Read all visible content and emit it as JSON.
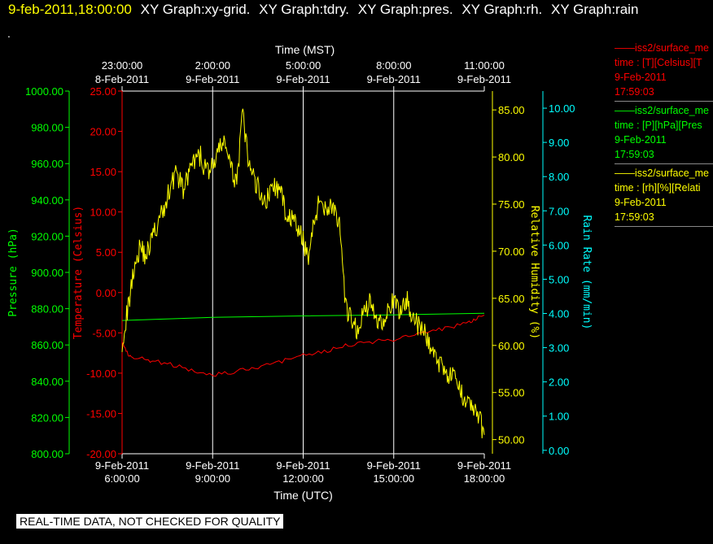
{
  "header": {
    "datetime": "9-feb-2011,18:00:00",
    "titles": [
      "XY Graph:xy-grid.",
      "XY Graph:tdry.",
      "XY Graph:pres.",
      "XY Graph:rh.",
      "XY Graph:rain"
    ]
  },
  "header_dot": ".",
  "banner": "REAL-TIME DATA, NOT CHECKED FOR QUALITY",
  "colors": {
    "temperature": "#ff0000",
    "pressure": "#00ff00",
    "humidity": "#ffff00",
    "rain": "#00ffff",
    "grid": "#ffffff"
  },
  "legend": [
    {
      "color": "#ff0000",
      "name": "iss2/surface_me",
      "line2": "time : [T][Celsius][T",
      "line3": "9-Feb-2011",
      "line4": "17:59:03"
    },
    {
      "color": "#00ff00",
      "name": "iss2/surface_me",
      "line2": "time : [P][hPa][Pres",
      "line3": "9-Feb-2011",
      "line4": "17:59:03"
    },
    {
      "color": "#ffff00",
      "name": "iss2/surface_me",
      "line2": "time : [rh][%][Relati",
      "line3": "9-Feb-2011",
      "line4": "17:59:03"
    }
  ],
  "chart_data": {
    "type": "line",
    "top_axis": {
      "label": "Time (MST)",
      "ticks": [
        {
          "time": "23:00:00",
          "date": "8-Feb-2011"
        },
        {
          "time": "2:00:00",
          "date": "9-Feb-2011"
        },
        {
          "time": "5:00:00",
          "date": "9-Feb-2011"
        },
        {
          "time": "8:00:00",
          "date": "9-Feb-2011"
        },
        {
          "time": "11:00:00",
          "date": "9-Feb-2011"
        }
      ]
    },
    "bottom_axis": {
      "label": "Time (UTC)",
      "xlim": [
        "2011-02-09 06:00:00",
        "2011-02-09 18:00:00"
      ],
      "ticks": [
        {
          "date": "9-Feb-2011",
          "time": "6:00:00"
        },
        {
          "date": "9-Feb-2011",
          "time": "9:00:00"
        },
        {
          "date": "9-Feb-2011",
          "time": "12:00:00"
        },
        {
          "date": "9-Feb-2011",
          "time": "15:00:00"
        },
        {
          "date": "9-Feb-2011",
          "time": "18:00:00"
        }
      ]
    },
    "grid": true,
    "legend_position": "right",
    "y_axes": {
      "pressure": {
        "label": "Pressure (hPa)",
        "ylim": [
          800,
          1000
        ],
        "ticks": [
          "800.00",
          "820.00",
          "840.00",
          "860.00",
          "880.00",
          "900.00",
          "920.00",
          "940.00",
          "960.00",
          "980.00",
          "1000.00"
        ]
      },
      "temperature": {
        "label": "Temperature (Celsius)",
        "ylim": [
          -20,
          25
        ],
        "ticks": [
          "-20.00",
          "-15.00",
          "-10.00",
          "-5.00",
          "0.00",
          "5.00",
          "10.00",
          "15.00",
          "20.00",
          "25.00"
        ]
      },
      "humidity": {
        "label": "Relative Humidity (%)",
        "ylim": [
          48.5,
          87
        ],
        "ticks": [
          "50.00",
          "55.00",
          "60.00",
          "65.00",
          "70.00",
          "75.00",
          "80.00",
          "85.00"
        ]
      },
      "rain": {
        "label": "Rain Rate (mm/min)",
        "ylim": [
          -0.1,
          10.5
        ],
        "ticks": [
          "0.00",
          "1.00",
          "2.00",
          "3.00",
          "4.00",
          "5.00",
          "6.00",
          "7.00",
          "8.00",
          "9.00",
          "10.00"
        ]
      }
    },
    "series": [
      {
        "name": "iss2/surface_me",
        "axis": "temperature",
        "x": [
          "06:00",
          "06:10",
          "06:20",
          "06:40",
          "07:00",
          "07:30",
          "08:00",
          "08:30",
          "09:00",
          "09:30",
          "10:00",
          "10:30",
          "11:00",
          "11:30",
          "12:00",
          "12:30",
          "13:00",
          "13:30",
          "14:00",
          "14:30",
          "15:00",
          "15:30",
          "16:00",
          "16:30",
          "17:00",
          "17:30",
          "17:45",
          "18:00"
        ],
        "y": [
          -6.0,
          -7.5,
          -8.0,
          -8.2,
          -8.5,
          -8.8,
          -9.3,
          -9.8,
          -10.2,
          -10.0,
          -9.6,
          -9.3,
          -8.8,
          -8.3,
          -7.8,
          -7.5,
          -7.0,
          -6.5,
          -6.3,
          -6.0,
          -5.8,
          -5.4,
          -5.0,
          -4.6,
          -4.2,
          -3.6,
          -3.1,
          -2.8
        ]
      },
      {
        "name": "iss2/surface_me",
        "axis": "pressure",
        "x": [
          "06:00",
          "09:00",
          "12:00",
          "15:00",
          "18:00"
        ],
        "y": [
          873.5,
          875.2,
          876.0,
          876.6,
          877.5
        ]
      },
      {
        "name": "iss2/surface_me",
        "axis": "humidity",
        "x": [
          "06:00",
          "06:12",
          "06:24",
          "06:36",
          "06:48",
          "07:00",
          "07:12",
          "07:24",
          "07:36",
          "07:48",
          "08:00",
          "08:12",
          "08:24",
          "08:36",
          "08:48",
          "09:00",
          "09:12",
          "09:24",
          "09:36",
          "09:48",
          "10:00",
          "10:12",
          "10:24",
          "10:36",
          "10:48",
          "11:00",
          "11:12",
          "11:24",
          "11:36",
          "11:48",
          "12:00",
          "12:12",
          "12:24",
          "12:36",
          "12:48",
          "13:00",
          "13:12",
          "13:24",
          "13:36",
          "13:48",
          "14:00",
          "14:12",
          "14:24",
          "14:36",
          "14:48",
          "15:00",
          "15:12",
          "15:24",
          "15:36",
          "15:48",
          "16:00",
          "16:12",
          "16:24",
          "16:36",
          "16:48",
          "17:00",
          "17:12",
          "17:24",
          "17:36",
          "17:48",
          "18:00"
        ],
        "y": [
          60.5,
          64.0,
          68.5,
          70.5,
          69.5,
          71.5,
          73.0,
          74.5,
          77.0,
          78.5,
          76.5,
          78.0,
          79.5,
          80.0,
          78.5,
          79.0,
          80.5,
          82.0,
          78.5,
          77.5,
          84.5,
          79.0,
          77.5,
          76.0,
          75.5,
          77.0,
          76.5,
          74.5,
          73.5,
          72.5,
          71.0,
          69.5,
          74.0,
          75.5,
          74.5,
          75.0,
          72.5,
          64.0,
          62.5,
          61.5,
          63.5,
          64.5,
          63.0,
          62.5,
          64.0,
          64.5,
          63.5,
          65.0,
          63.5,
          62.0,
          61.5,
          60.0,
          58.5,
          58.0,
          57.0,
          56.5,
          55.0,
          54.5,
          53.5,
          52.5,
          50.5
        ]
      },
      {
        "name": "iss2/surface_me",
        "axis": "rain",
        "x": [],
        "y": []
      }
    ]
  }
}
